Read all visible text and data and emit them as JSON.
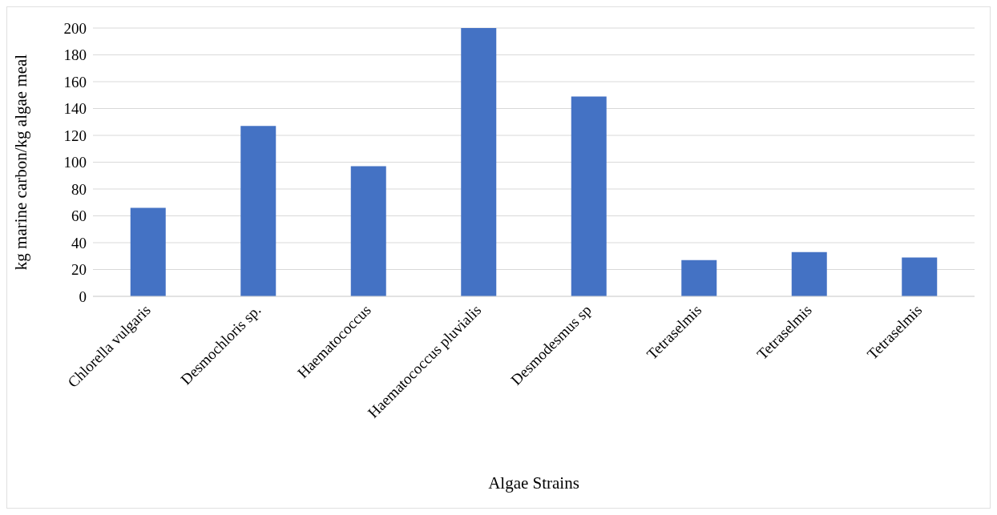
{
  "chart_data": {
    "type": "bar",
    "xlabel": "Algae Strains",
    "ylabel": "kg marine carbon/kg algae meal",
    "categories": [
      "Chlorella vulgaris",
      "Desmochloris sp.",
      "Haematococcus",
      "Haematococcus pluvialis",
      "Desmodesmus sp",
      "Tetraselmis",
      "Tetraselmis",
      "Tetraselmis"
    ],
    "values": [
      66,
      127,
      97,
      200,
      149,
      27,
      33,
      29
    ],
    "color": "#4472c4",
    "ylim": [
      0,
      200
    ],
    "yticks": [
      0,
      20,
      40,
      60,
      80,
      100,
      120,
      140,
      160,
      180,
      200
    ],
    "grid": "y"
  }
}
